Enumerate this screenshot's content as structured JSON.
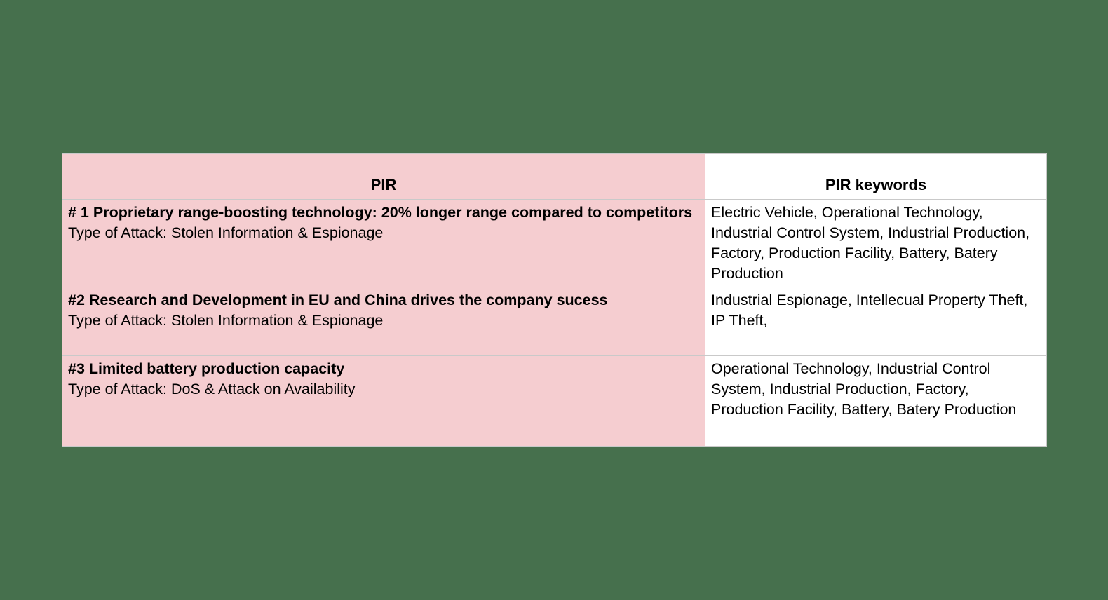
{
  "page": {
    "background_color": "#46704d"
  },
  "table": {
    "colors": {
      "pir_column_bg": "#f5cdd0",
      "keywords_column_bg": "#ffffff",
      "border": "#c9c9c9",
      "text": "#000000"
    },
    "header": {
      "pir": "PIR",
      "keywords": "PIR keywords"
    },
    "rows": [
      {
        "pir_title": "# 1 Proprietary range-boosting technology: 20% longer range compared to competitors",
        "attack_type": "Type of Attack: Stolen Information & Espionage",
        "keywords": "Electric Vehicle, Operational Technology, Industrial Control System, Industrial Production, Factory, Production Facility, Battery, Batery Production"
      },
      {
        "pir_title": "#2 Research and Development in EU and China drives the company sucess",
        "attack_type": "Type of Attack: Stolen Information & Espionage",
        "keywords": "Industrial Espionage, Intellecual Property Theft, IP Theft,"
      },
      {
        "pir_title": "#3 Limited battery production capacity",
        "attack_type": "Type of Attack: DoS & Attack on Availability",
        "keywords": "Operational Technology, Industrial Control System, Industrial Production, Factory, Production Facility, Battery, Batery Production"
      }
    ]
  }
}
